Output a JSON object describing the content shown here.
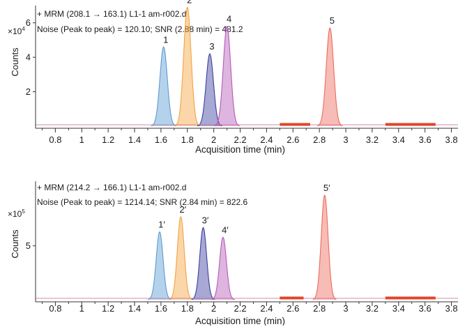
{
  "chart_data": [
    {
      "type": "line",
      "header_line1": "+ MRM (208.1 → 163.1) L1-1 am-r002.d",
      "header_line2": "Noise (Peak to peak) = 120.10; SNR (2.88 min) = 481.2",
      "scale_base": "×10",
      "scale_exp": "4",
      "ylabel": "Counts",
      "xlabel": "Acquisition time (min)",
      "xlim": [
        0.65,
        3.85
      ],
      "ylim": [
        0,
        7.0
      ],
      "x_ticks": [
        "0.8",
        "1",
        "1.2",
        "1.4",
        "1.6",
        "1.8",
        "2",
        "2.2",
        "2.4",
        "2.6",
        "2.8",
        "3",
        "3.2",
        "3.4",
        "3.6",
        "3.8"
      ],
      "y_ticks": [
        "2",
        "4",
        "6"
      ],
      "noise_regions": [
        [
          2.5,
          2.73
        ],
        [
          3.3,
          3.68
        ]
      ],
      "noise_color": "#e0452a",
      "baseline_color": "#c65a8a",
      "peaks": [
        {
          "label": "1",
          "rt": 1.62,
          "height": 4.6,
          "color": "#5b9bd5"
        },
        {
          "label": "2",
          "rt": 1.8,
          "height": 6.9,
          "color": "#f4a340"
        },
        {
          "label": "3",
          "rt": 1.97,
          "height": 4.2,
          "color": "#3b3f9e"
        },
        {
          "label": "4",
          "rt": 2.1,
          "height": 5.8,
          "color": "#b55ab8"
        },
        {
          "label": "5",
          "rt": 2.88,
          "height": 5.7,
          "color": "#ee6a5b"
        }
      ]
    },
    {
      "type": "line",
      "header_line1": "+ MRM (214.2 → 166.1) L1-1 am-r002.d",
      "header_line2": "Noise (Peak to peak) = 1214.14; SNR (2.84 min) = 822.6",
      "scale_base": "×10",
      "scale_exp": "5",
      "ylabel": "Counts",
      "xlabel": "Acquisition time (min)",
      "xlim": [
        0.65,
        3.85
      ],
      "ylim": [
        0,
        11.0
      ],
      "x_ticks": [
        "0.8",
        "1",
        "1.2",
        "1.4",
        "1.6",
        "1.8",
        "2",
        "2.2",
        "2.4",
        "2.6",
        "2.8",
        "3",
        "3.2",
        "3.4",
        "3.6",
        "3.8"
      ],
      "y_ticks": [
        "5"
      ],
      "noise_regions": [
        [
          2.5,
          2.68
        ],
        [
          3.3,
          3.68
        ]
      ],
      "noise_color": "#e0452a",
      "baseline_color": "#c65a8a",
      "peaks": [
        {
          "label": "1′",
          "rt": 1.59,
          "height": 6.3,
          "color": "#5b9bd5"
        },
        {
          "label": "2′",
          "rt": 1.75,
          "height": 7.7,
          "color": "#f4a340"
        },
        {
          "label": "3′",
          "rt": 1.92,
          "height": 6.7,
          "color": "#3b3f9e"
        },
        {
          "label": "4′",
          "rt": 2.07,
          "height": 5.8,
          "color": "#b55ab8"
        },
        {
          "label": "5′",
          "rt": 2.84,
          "height": 9.7,
          "color": "#ee6a5b"
        }
      ]
    }
  ]
}
